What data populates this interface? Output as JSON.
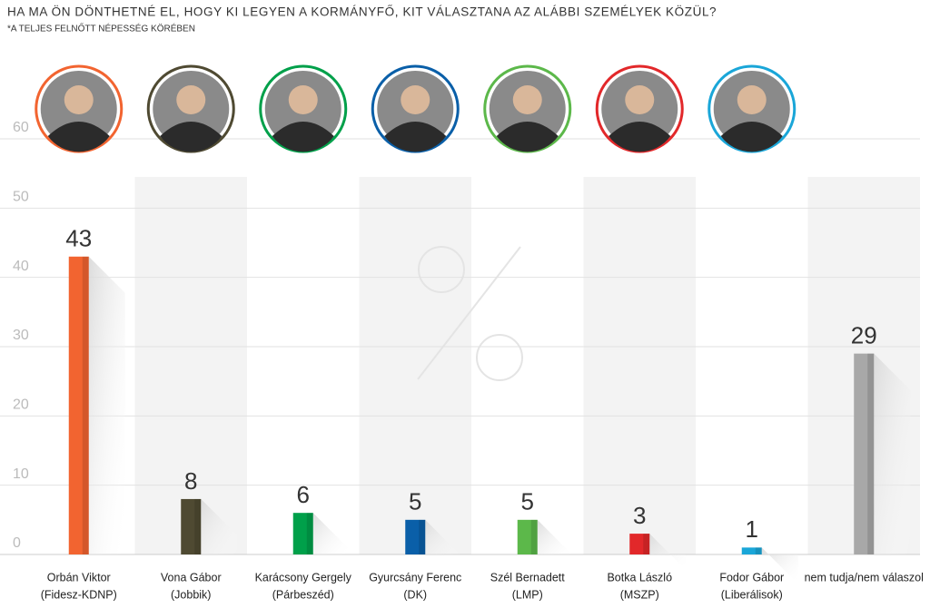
{
  "chart_data": {
    "type": "bar",
    "title": "HA MA ÖN DÖNTHETNÉ EL, HOGY KI LEGYEN A KORMÁNYFŐ, KIT VÁLASZTANA AZ ALÁBBI SZEMÉLYEK KÖZÜL?",
    "subtitle": "*A TELJES FELNŐTT NÉPESSÉG KÖRÉBEN",
    "categories": [
      [
        "Orbán Viktor",
        "(Fidesz-KDNP)"
      ],
      [
        "Vona Gábor",
        "(Jobbik)"
      ],
      [
        "Karácsony Gergely",
        "(Párbeszéd)"
      ],
      [
        "Gyurcsány Ferenc",
        "(DK)"
      ],
      [
        "Szél Bernadett",
        "(LMP)"
      ],
      [
        "Botka László",
        "(MSZP)"
      ],
      [
        "Fodor Gábor",
        "(Liberálisok)"
      ],
      [
        "nem tudja/nem válaszol"
      ]
    ],
    "values": [
      43,
      8,
      6,
      5,
      5,
      3,
      1,
      29
    ],
    "colors": [
      "#f26430",
      "#4f4a32",
      "#00a04a",
      "#0a5fa8",
      "#5cb84a",
      "#e2282a",
      "#1aa6d8",
      "#a8a8a8"
    ],
    "ylim": [
      0,
      60
    ],
    "yticks": [
      0,
      10,
      20,
      30,
      40,
      50,
      60
    ],
    "grid": true
  }
}
